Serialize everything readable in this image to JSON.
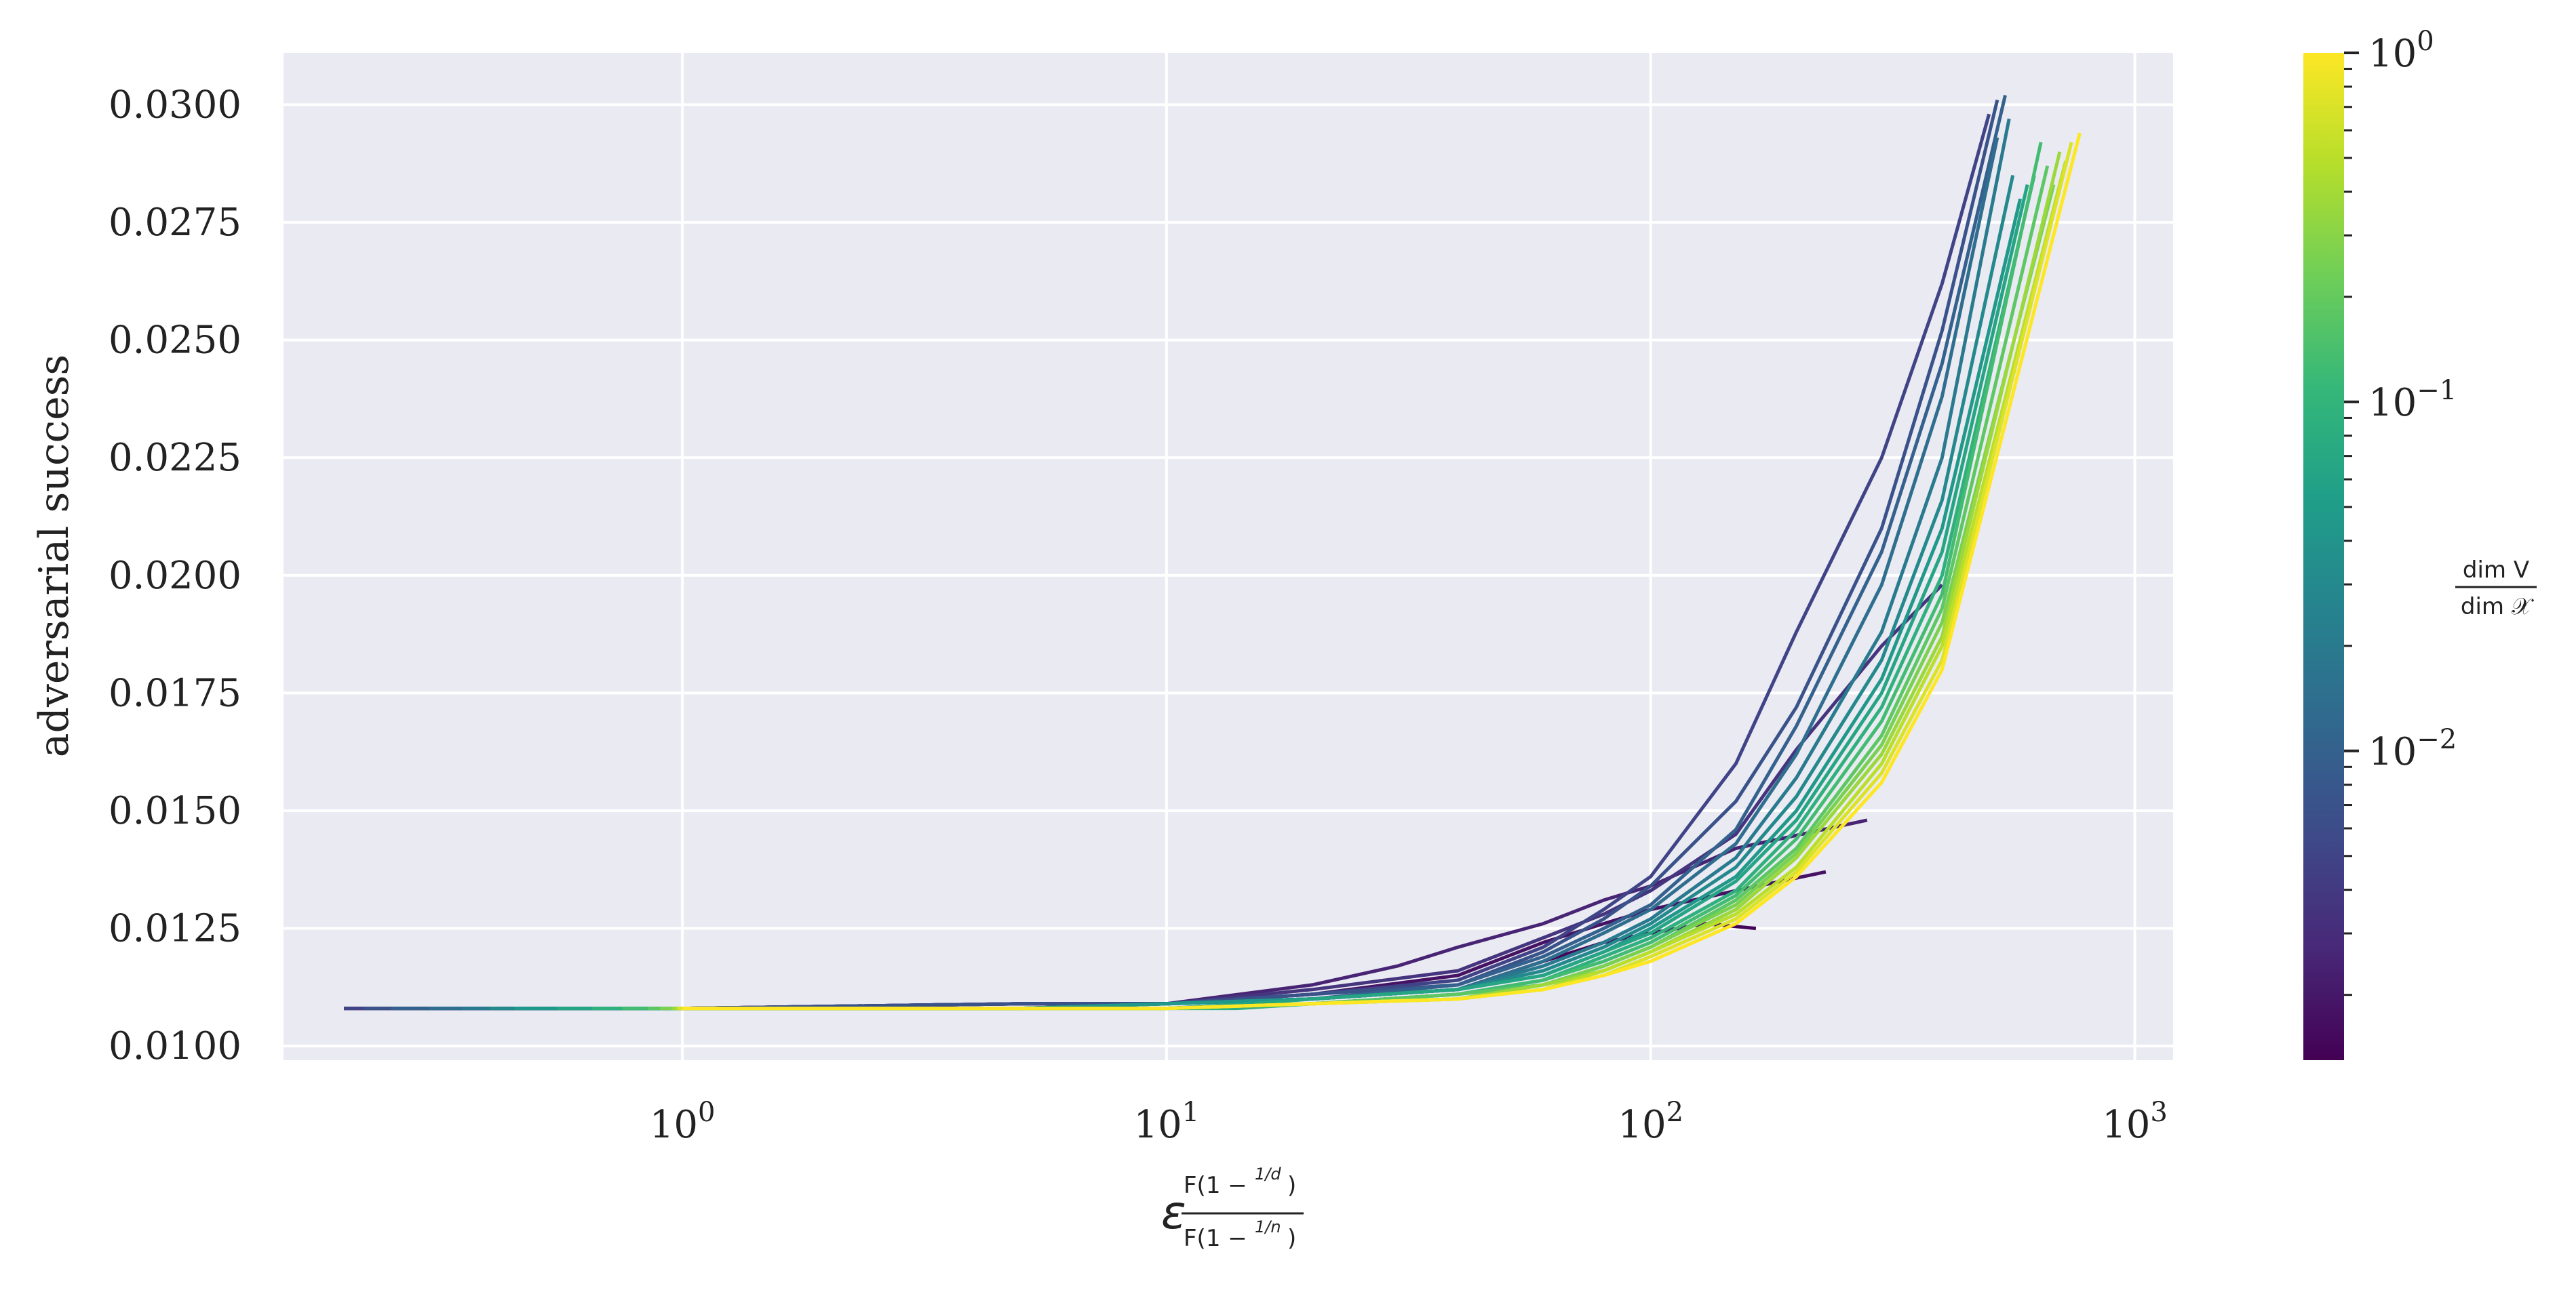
{
  "chart_data": {
    "type": "line",
    "x_scale": "log",
    "y_scale": "linear",
    "xlim": [
      0.15,
      1200
    ],
    "ylim": [
      0.0097,
      0.0311
    ],
    "grid": true,
    "legend": "none",
    "colormap": "viridis",
    "y_ticks": [
      0.01,
      0.0125,
      0.015,
      0.0175,
      0.02,
      0.0225,
      0.025,
      0.0275,
      0.03
    ],
    "y_tick_labels": [
      "0.0100",
      "0.0125",
      "0.0150",
      "0.0175",
      "0.0200",
      "0.0225",
      "0.0250",
      "0.0275",
      "0.0300"
    ],
    "x_ticks": [
      {
        "value": 1,
        "base": "10",
        "exp": "0"
      },
      {
        "value": 10,
        "base": "10",
        "exp": "1"
      },
      {
        "value": 100,
        "base": "10",
        "exp": "2"
      },
      {
        "value": 1000,
        "base": "10",
        "exp": "3"
      }
    ],
    "ylabel": "adversarial success",
    "xlabel": {
      "lead": "ε",
      "num": "F(1 − ",
      "num_frac": "1/d",
      "den": "F(1 − ",
      "den_frac": "1/n",
      "close": ")"
    },
    "colorbar": {
      "scale": "log",
      "range": [
        0.0013,
        1.0
      ],
      "ticks": [
        {
          "value": 1.0,
          "base": "10",
          "exp": "0"
        },
        {
          "value": 0.1,
          "base": "10",
          "exp": "−1"
        },
        {
          "value": 0.01,
          "base": "10",
          "exp": "−2"
        }
      ],
      "label_num": "dim V",
      "label_den": "dim 𝒳"
    },
    "series": [
      {
        "c": 0.0014,
        "x": [
          0.2,
          1,
          5,
          10,
          20,
          40,
          60,
          80,
          100,
          130,
          165
        ],
        "y": [
          0.0108,
          0.0108,
          0.0109,
          0.0109,
          0.011,
          0.0112,
          0.0118,
          0.0122,
          0.0124,
          0.0126,
          0.0125
        ]
      },
      {
        "c": 0.0018,
        "x": [
          0.2,
          1,
          5,
          10,
          20,
          40,
          60,
          80,
          100,
          150,
          230
        ],
        "y": [
          0.0108,
          0.0108,
          0.0109,
          0.0109,
          0.0111,
          0.0115,
          0.0122,
          0.0126,
          0.0129,
          0.0133,
          0.0137
        ]
      },
      {
        "c": 0.0025,
        "x": [
          0.2,
          1,
          5,
          10,
          20,
          30,
          40,
          60,
          80,
          100,
          150,
          280
        ],
        "y": [
          0.0108,
          0.0108,
          0.0109,
          0.0109,
          0.0113,
          0.0117,
          0.0121,
          0.0126,
          0.0131,
          0.0134,
          0.0142,
          0.0148
        ]
      },
      {
        "c": 0.0035,
        "x": [
          0.2,
          1,
          5,
          10,
          20,
          40,
          60,
          80,
          100,
          150,
          200,
          300,
          400
        ],
        "y": [
          0.0108,
          0.0108,
          0.0109,
          0.0109,
          0.0112,
          0.0116,
          0.0123,
          0.0128,
          0.0133,
          0.0145,
          0.0163,
          0.0185,
          0.0198
        ]
      },
      {
        "c": 0.005,
        "x": [
          0.2,
          1,
          5,
          10,
          20,
          40,
          60,
          80,
          100,
          150,
          200,
          300,
          400,
          500
        ],
        "y": [
          0.0108,
          0.0108,
          0.0109,
          0.0109,
          0.0111,
          0.0114,
          0.0121,
          0.0129,
          0.0136,
          0.016,
          0.0188,
          0.0225,
          0.0262,
          0.0298
        ]
      },
      {
        "c": 0.007,
        "x": [
          0.22,
          1,
          5,
          10,
          20,
          40,
          60,
          80,
          100,
          150,
          200,
          300,
          400,
          520
        ],
        "y": [
          0.0108,
          0.0108,
          0.0109,
          0.0109,
          0.0111,
          0.0113,
          0.012,
          0.0127,
          0.0134,
          0.0152,
          0.0172,
          0.021,
          0.0252,
          0.0301
        ]
      },
      {
        "c": 0.01,
        "x": [
          0.25,
          1,
          5,
          10,
          20,
          40,
          60,
          80,
          100,
          150,
          200,
          300,
          400,
          540
        ],
        "y": [
          0.0108,
          0.0108,
          0.0108,
          0.0109,
          0.011,
          0.0113,
          0.0119,
          0.0125,
          0.013,
          0.0146,
          0.0168,
          0.0205,
          0.0245,
          0.0302
        ]
      },
      {
        "c": 0.014,
        "x": [
          0.3,
          1,
          5,
          10,
          20,
          40,
          60,
          80,
          100,
          150,
          200,
          300,
          400,
          520
        ],
        "y": [
          0.0108,
          0.0108,
          0.0108,
          0.0109,
          0.011,
          0.0112,
          0.0118,
          0.0124,
          0.0129,
          0.0143,
          0.0162,
          0.0198,
          0.0238,
          0.0293
        ]
      },
      {
        "c": 0.02,
        "x": [
          0.35,
          1,
          5,
          10,
          20,
          40,
          60,
          80,
          100,
          150,
          200,
          300,
          400,
          550
        ],
        "y": [
          0.0108,
          0.0108,
          0.0108,
          0.0109,
          0.011,
          0.0112,
          0.0117,
          0.0122,
          0.0127,
          0.014,
          0.0157,
          0.0188,
          0.0225,
          0.0297
        ]
      },
      {
        "c": 0.03,
        "x": [
          0.4,
          1,
          5,
          10,
          20,
          40,
          60,
          80,
          100,
          150,
          200,
          300,
          400,
          560
        ],
        "y": [
          0.0108,
          0.0108,
          0.0108,
          0.0109,
          0.011,
          0.0112,
          0.0116,
          0.0121,
          0.0126,
          0.0138,
          0.0153,
          0.0182,
          0.0216,
          0.0285
        ]
      },
      {
        "c": 0.045,
        "x": [
          0.45,
          1,
          5,
          10,
          20,
          40,
          60,
          80,
          100,
          150,
          200,
          300,
          400,
          580
        ],
        "y": [
          0.0108,
          0.0108,
          0.0108,
          0.0109,
          0.011,
          0.0112,
          0.0115,
          0.012,
          0.0125,
          0.0136,
          0.015,
          0.0178,
          0.021,
          0.028
        ]
      },
      {
        "c": 0.065,
        "x": [
          0.55,
          1,
          5,
          10,
          15,
          20,
          40,
          60,
          80,
          100,
          150,
          200,
          300,
          400,
          600
        ],
        "y": [
          0.0108,
          0.0108,
          0.0108,
          0.0108,
          0.0109,
          0.011,
          0.0112,
          0.0115,
          0.012,
          0.0124,
          0.0135,
          0.0148,
          0.0175,
          0.0205,
          0.0283
        ]
      },
      {
        "c": 0.09,
        "x": [
          0.65,
          1,
          5,
          10,
          14,
          20,
          40,
          60,
          80,
          100,
          150,
          200,
          300,
          400,
          620
        ],
        "y": [
          0.0108,
          0.0108,
          0.0108,
          0.0108,
          0.0108,
          0.0109,
          0.0111,
          0.0114,
          0.0119,
          0.0123,
          0.0133,
          0.0146,
          0.0172,
          0.02,
          0.0285
        ]
      },
      {
        "c": 0.13,
        "x": [
          0.75,
          1,
          5,
          10,
          20,
          40,
          60,
          80,
          100,
          150,
          200,
          300,
          400,
          640
        ],
        "y": [
          0.0108,
          0.0108,
          0.0108,
          0.0108,
          0.0109,
          0.0111,
          0.0114,
          0.0118,
          0.0122,
          0.0132,
          0.0144,
          0.0169,
          0.0196,
          0.0292
        ]
      },
      {
        "c": 0.18,
        "x": [
          0.85,
          1,
          5,
          10,
          20,
          40,
          60,
          80,
          100,
          150,
          200,
          300,
          400,
          660
        ],
        "y": [
          0.0108,
          0.0108,
          0.0108,
          0.0108,
          0.0109,
          0.0111,
          0.0113,
          0.0117,
          0.0121,
          0.0131,
          0.0142,
          0.0166,
          0.0193,
          0.0287
        ]
      },
      {
        "c": 0.26,
        "x": [
          0.9,
          1,
          5,
          10,
          20,
          40,
          60,
          80,
          100,
          150,
          200,
          300,
          400,
          680
        ],
        "y": [
          0.0108,
          0.0108,
          0.0108,
          0.0108,
          0.0109,
          0.011,
          0.0113,
          0.0117,
          0.0121,
          0.013,
          0.0141,
          0.0164,
          0.019,
          0.0283
        ]
      },
      {
        "c": 0.36,
        "x": [
          0.95,
          1,
          5,
          10,
          20,
          40,
          60,
          80,
          100,
          150,
          200,
          300,
          400,
          700
        ],
        "y": [
          0.0108,
          0.0108,
          0.0108,
          0.0108,
          0.0109,
          0.011,
          0.0113,
          0.0116,
          0.012,
          0.0129,
          0.014,
          0.0162,
          0.0187,
          0.029
        ]
      },
      {
        "c": 0.5,
        "x": [
          0.97,
          1,
          5,
          10,
          20,
          40,
          60,
          80,
          100,
          150,
          200,
          300,
          400,
          720
        ],
        "y": [
          0.0108,
          0.0108,
          0.0108,
          0.0108,
          0.0109,
          0.011,
          0.0112,
          0.0116,
          0.012,
          0.0128,
          0.0138,
          0.016,
          0.0185,
          0.0288
        ]
      },
      {
        "c": 0.7,
        "x": [
          0.98,
          1,
          5,
          10,
          20,
          40,
          60,
          80,
          100,
          150,
          200,
          300,
          400,
          740
        ],
        "y": [
          0.0108,
          0.0108,
          0.0108,
          0.0108,
          0.0109,
          0.011,
          0.0112,
          0.0115,
          0.0119,
          0.0127,
          0.0137,
          0.0158,
          0.0182,
          0.0292
        ]
      },
      {
        "c": 1.0,
        "x": [
          1,
          5,
          10,
          20,
          40,
          60,
          80,
          100,
          150,
          200,
          300,
          400,
          770
        ],
        "y": [
          0.0108,
          0.0108,
          0.0108,
          0.0109,
          0.011,
          0.0112,
          0.0115,
          0.0118,
          0.0126,
          0.0136,
          0.0156,
          0.018,
          0.0294
        ]
      }
    ]
  }
}
